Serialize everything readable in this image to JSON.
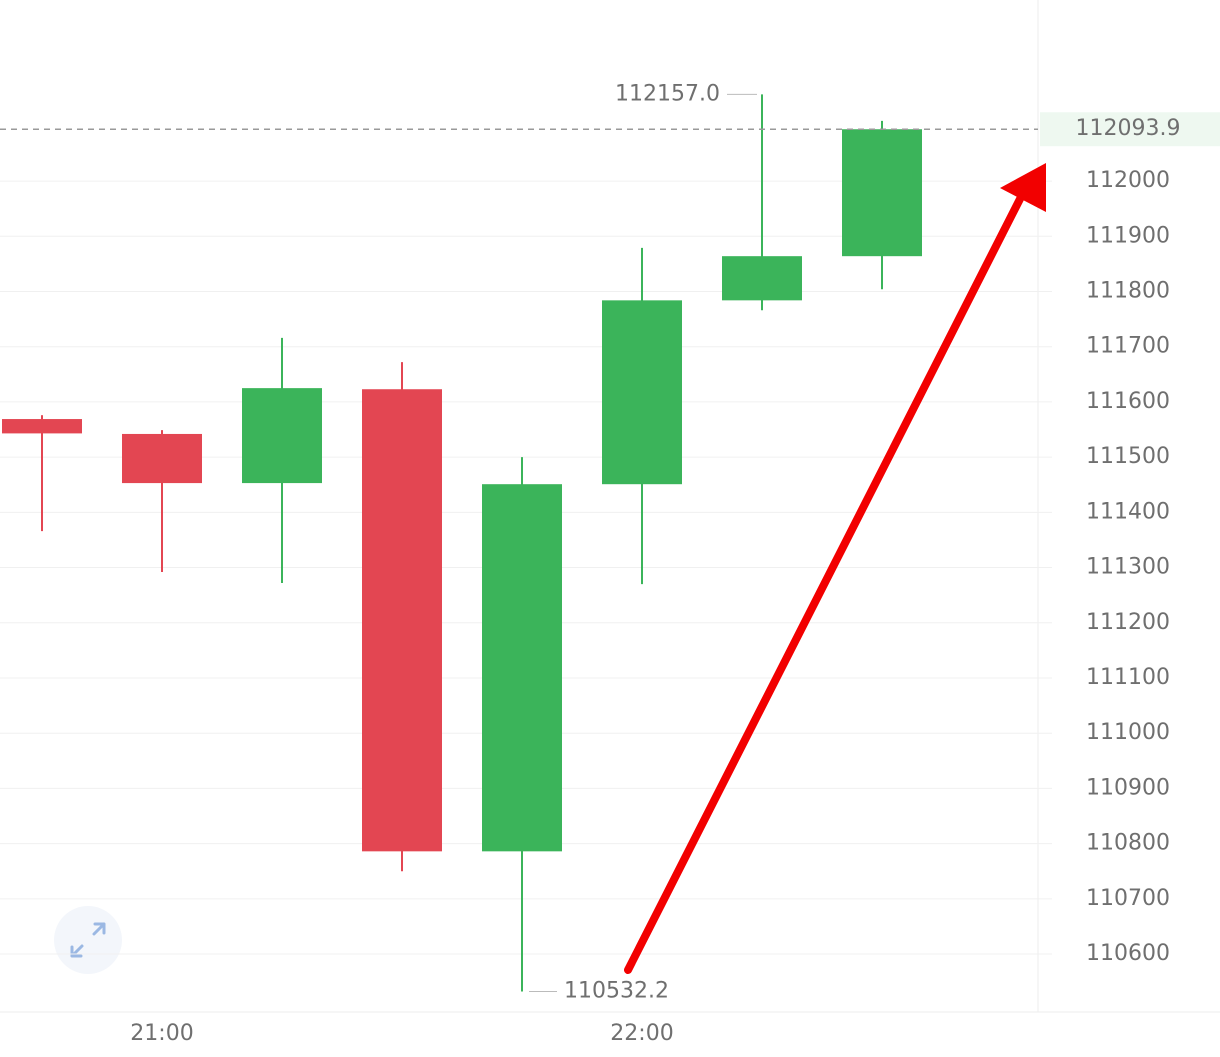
{
  "chart_data": {
    "type": "candlestick",
    "categories": [
      null,
      "21:00",
      null,
      null,
      null,
      "22:00",
      null,
      null
    ],
    "open": [
      111569,
      111542,
      111453,
      111623,
      110786,
      111451,
      111784,
      111864
    ],
    "high": [
      111576,
      111549,
      111716,
      111672,
      111500,
      111879,
      112157,
      112109
    ],
    "low": [
      111366,
      111292,
      111272,
      110750,
      110532.2,
      111270,
      111766,
      111804
    ],
    "close": [
      111543,
      111453,
      111625,
      110786,
      111451,
      111784,
      111864,
      112093.9
    ],
    "up_color": "#3bb45a",
    "down_color": "#e34652",
    "ylim": [
      110495,
      112328
    ],
    "yticks": [
      110600,
      110700,
      110800,
      110900,
      111000,
      111100,
      111200,
      111300,
      111400,
      111500,
      111600,
      111700,
      111800,
      111900,
      112000
    ],
    "grid": true,
    "annotations": [
      {
        "value": 112157,
        "label": "112157.0",
        "side": "left"
      },
      {
        "value": 110532.2,
        "label": "110532.2",
        "side": "right"
      }
    ],
    "last_price": 112093.9
  }
}
